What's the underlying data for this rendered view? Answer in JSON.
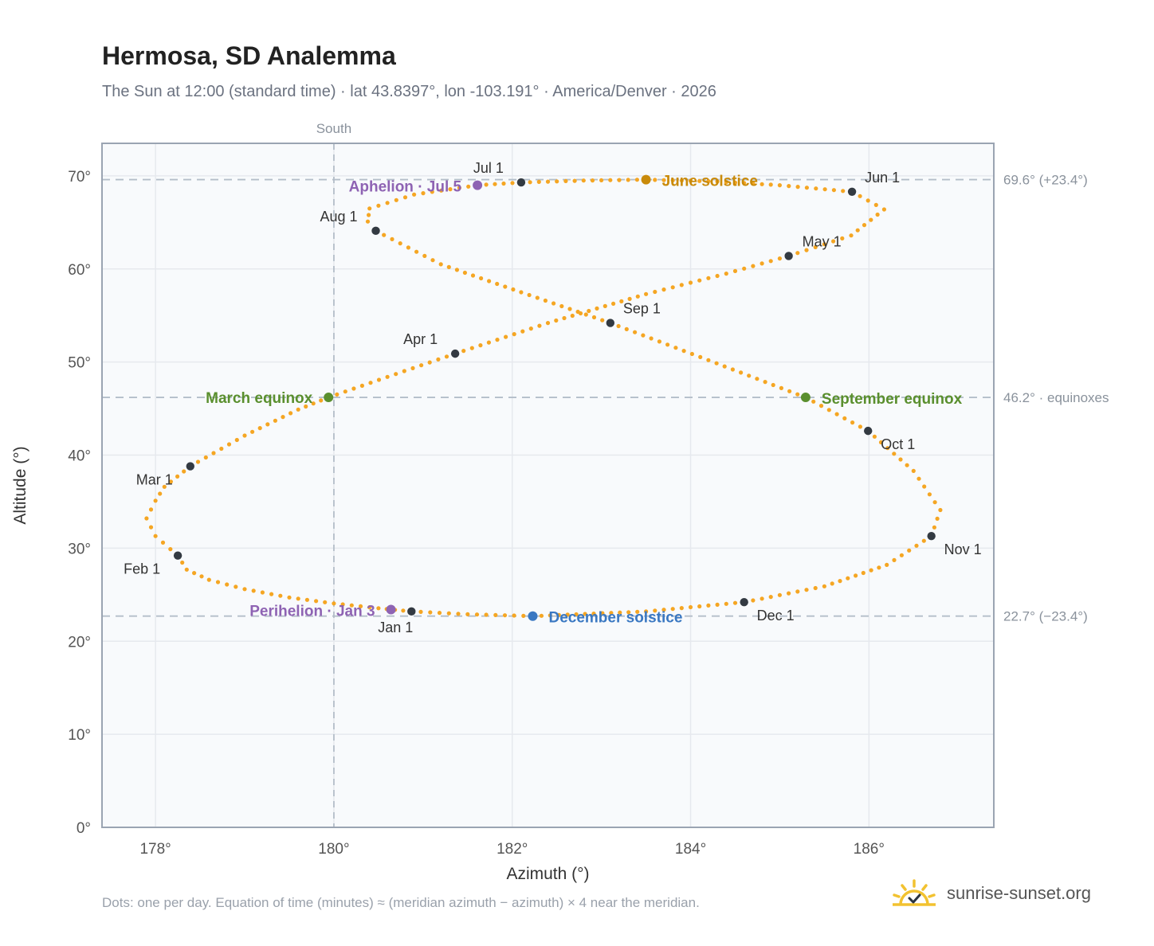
{
  "title": "Hermosa, SD Analemma",
  "subtitle": "The Sun at 12:00 (standard time) · lat 43.8397°, lon -103.191° · America/Denver · 2026",
  "footnote": "Dots: one per day. Equation of time (minutes) ≈ (meridian azimuth − azimuth) × 4 near the meridian.",
  "brand": {
    "name": "sunrise-sunset.org",
    "icon": "sun-logo-icon"
  },
  "colors": {
    "curve": "#f5a623",
    "month": "#333a42",
    "solstice_june": "#c98a0a",
    "solstice_december": "#3a78c2",
    "equinox": "#5a8f2e",
    "apsis": "#8e63b3",
    "grid": "#e6e9ee",
    "plot_bg": "#f8fafc",
    "frame": "#9aa4b2",
    "ref_line": "#b4bec9"
  },
  "chart_data": {
    "type": "scatter",
    "xlabel": "Azimuth (°)",
    "ylabel": "Altitude (°)",
    "xlim": [
      177.4,
      187.4
    ],
    "ylim": [
      0,
      73.5
    ],
    "x_ticks": [
      178,
      180,
      182,
      184,
      186
    ],
    "x_tick_labels": [
      "178°",
      "180°",
      "182°",
      "184°",
      "186°"
    ],
    "y_ticks": [
      0,
      10,
      20,
      30,
      40,
      50,
      60,
      70
    ],
    "y_tick_labels": [
      "0°",
      "10°",
      "20°",
      "30°",
      "40°",
      "50°",
      "60°",
      "70°"
    ],
    "grid": true,
    "meridian": {
      "azimuth": 180,
      "label": "South"
    },
    "reference_lines": [
      {
        "altitude": 69.6,
        "label": "69.6° (+23.4°)"
      },
      {
        "altitude": 46.2,
        "label": "46.2° · equinoxes"
      },
      {
        "altitude": 22.7,
        "label": "22.7° (−23.4°)"
      }
    ],
    "months": [
      {
        "label": "Jan 1",
        "azimuth": 180.87,
        "altitude": 23.2
      },
      {
        "label": "Feb 1",
        "azimuth": 178.25,
        "altitude": 29.2
      },
      {
        "label": "Mar 1",
        "azimuth": 178.39,
        "altitude": 38.8
      },
      {
        "label": "Apr 1",
        "azimuth": 181.36,
        "altitude": 50.9
      },
      {
        "label": "May 1",
        "azimuth": 185.1,
        "altitude": 61.4
      },
      {
        "label": "Jun 1",
        "azimuth": 185.81,
        "altitude": 68.3
      },
      {
        "label": "Jul 1",
        "azimuth": 182.1,
        "altitude": 69.3
      },
      {
        "label": "Aug 1",
        "azimuth": 180.47,
        "altitude": 64.1
      },
      {
        "label": "Sep 1",
        "azimuth": 183.1,
        "altitude": 54.2
      },
      {
        "label": "Oct 1",
        "azimuth": 185.99,
        "altitude": 42.6
      },
      {
        "label": "Nov 1",
        "azimuth": 186.7,
        "altitude": 31.3
      },
      {
        "label": "Dec 1",
        "azimuth": 184.6,
        "altitude": 24.2
      }
    ],
    "events": [
      {
        "label": "June solstice",
        "azimuth": 183.5,
        "altitude": 69.6,
        "kind": "solstice_june"
      },
      {
        "label": "December solstice",
        "azimuth": 182.23,
        "altitude": 22.7,
        "kind": "solstice_december"
      },
      {
        "label": "March equinox",
        "azimuth": 179.94,
        "altitude": 46.2,
        "kind": "equinox"
      },
      {
        "label": "September equinox",
        "azimuth": 185.29,
        "altitude": 46.2,
        "kind": "equinox"
      },
      {
        "label": "Aphelion · Jul 5",
        "azimuth": 181.61,
        "altitude": 69.0,
        "kind": "apsis"
      },
      {
        "label": "Perihelion · Jan 3",
        "azimuth": 180.64,
        "altitude": 23.4,
        "kind": "apsis"
      }
    ],
    "daily_points": [
      [
        180.87,
        23.2
      ],
      [
        180.5,
        23.55
      ],
      [
        180.0,
        24.06
      ],
      [
        179.5,
        24.7
      ],
      [
        179.0,
        25.6
      ],
      [
        178.6,
        26.6
      ],
      [
        178.35,
        27.7
      ],
      [
        178.25,
        29.2
      ],
      [
        178.0,
        31.3
      ],
      [
        177.9,
        33.2
      ],
      [
        178.0,
        35.1
      ],
      [
        178.1,
        36.6
      ],
      [
        178.39,
        38.8
      ],
      [
        179.0,
        42.1
      ],
      [
        179.6,
        44.9
      ],
      [
        179.94,
        46.2
      ],
      [
        180.6,
        48.4
      ],
      [
        181.36,
        50.9
      ],
      [
        182.4,
        54.2
      ],
      [
        183.5,
        57.3
      ],
      [
        184.4,
        59.5
      ],
      [
        185.1,
        61.4
      ],
      [
        185.8,
        63.6
      ],
      [
        186.17,
        66.4
      ],
      [
        185.81,
        68.3
      ],
      [
        185.0,
        69.0
      ],
      [
        184.3,
        69.4
      ],
      [
        183.5,
        69.6
      ],
      [
        182.8,
        69.5
      ],
      [
        182.1,
        69.3
      ],
      [
        181.61,
        69.0
      ],
      [
        180.9,
        68.0
      ],
      [
        180.4,
        66.5
      ],
      [
        180.38,
        65.1
      ],
      [
        180.47,
        64.1
      ],
      [
        181.2,
        60.5
      ],
      [
        182.1,
        57.5
      ],
      [
        183.1,
        54.2
      ],
      [
        184.2,
        50.2
      ],
      [
        185.29,
        46.2
      ],
      [
        185.99,
        42.6
      ],
      [
        186.5,
        38.3
      ],
      [
        186.8,
        34.1
      ],
      [
        186.7,
        31.3
      ],
      [
        186.2,
        28.2
      ],
      [
        185.5,
        25.9
      ],
      [
        184.6,
        24.2
      ],
      [
        183.5,
        23.2
      ],
      [
        182.23,
        22.7
      ],
      [
        181.5,
        22.9
      ],
      [
        180.87,
        23.2
      ]
    ]
  }
}
